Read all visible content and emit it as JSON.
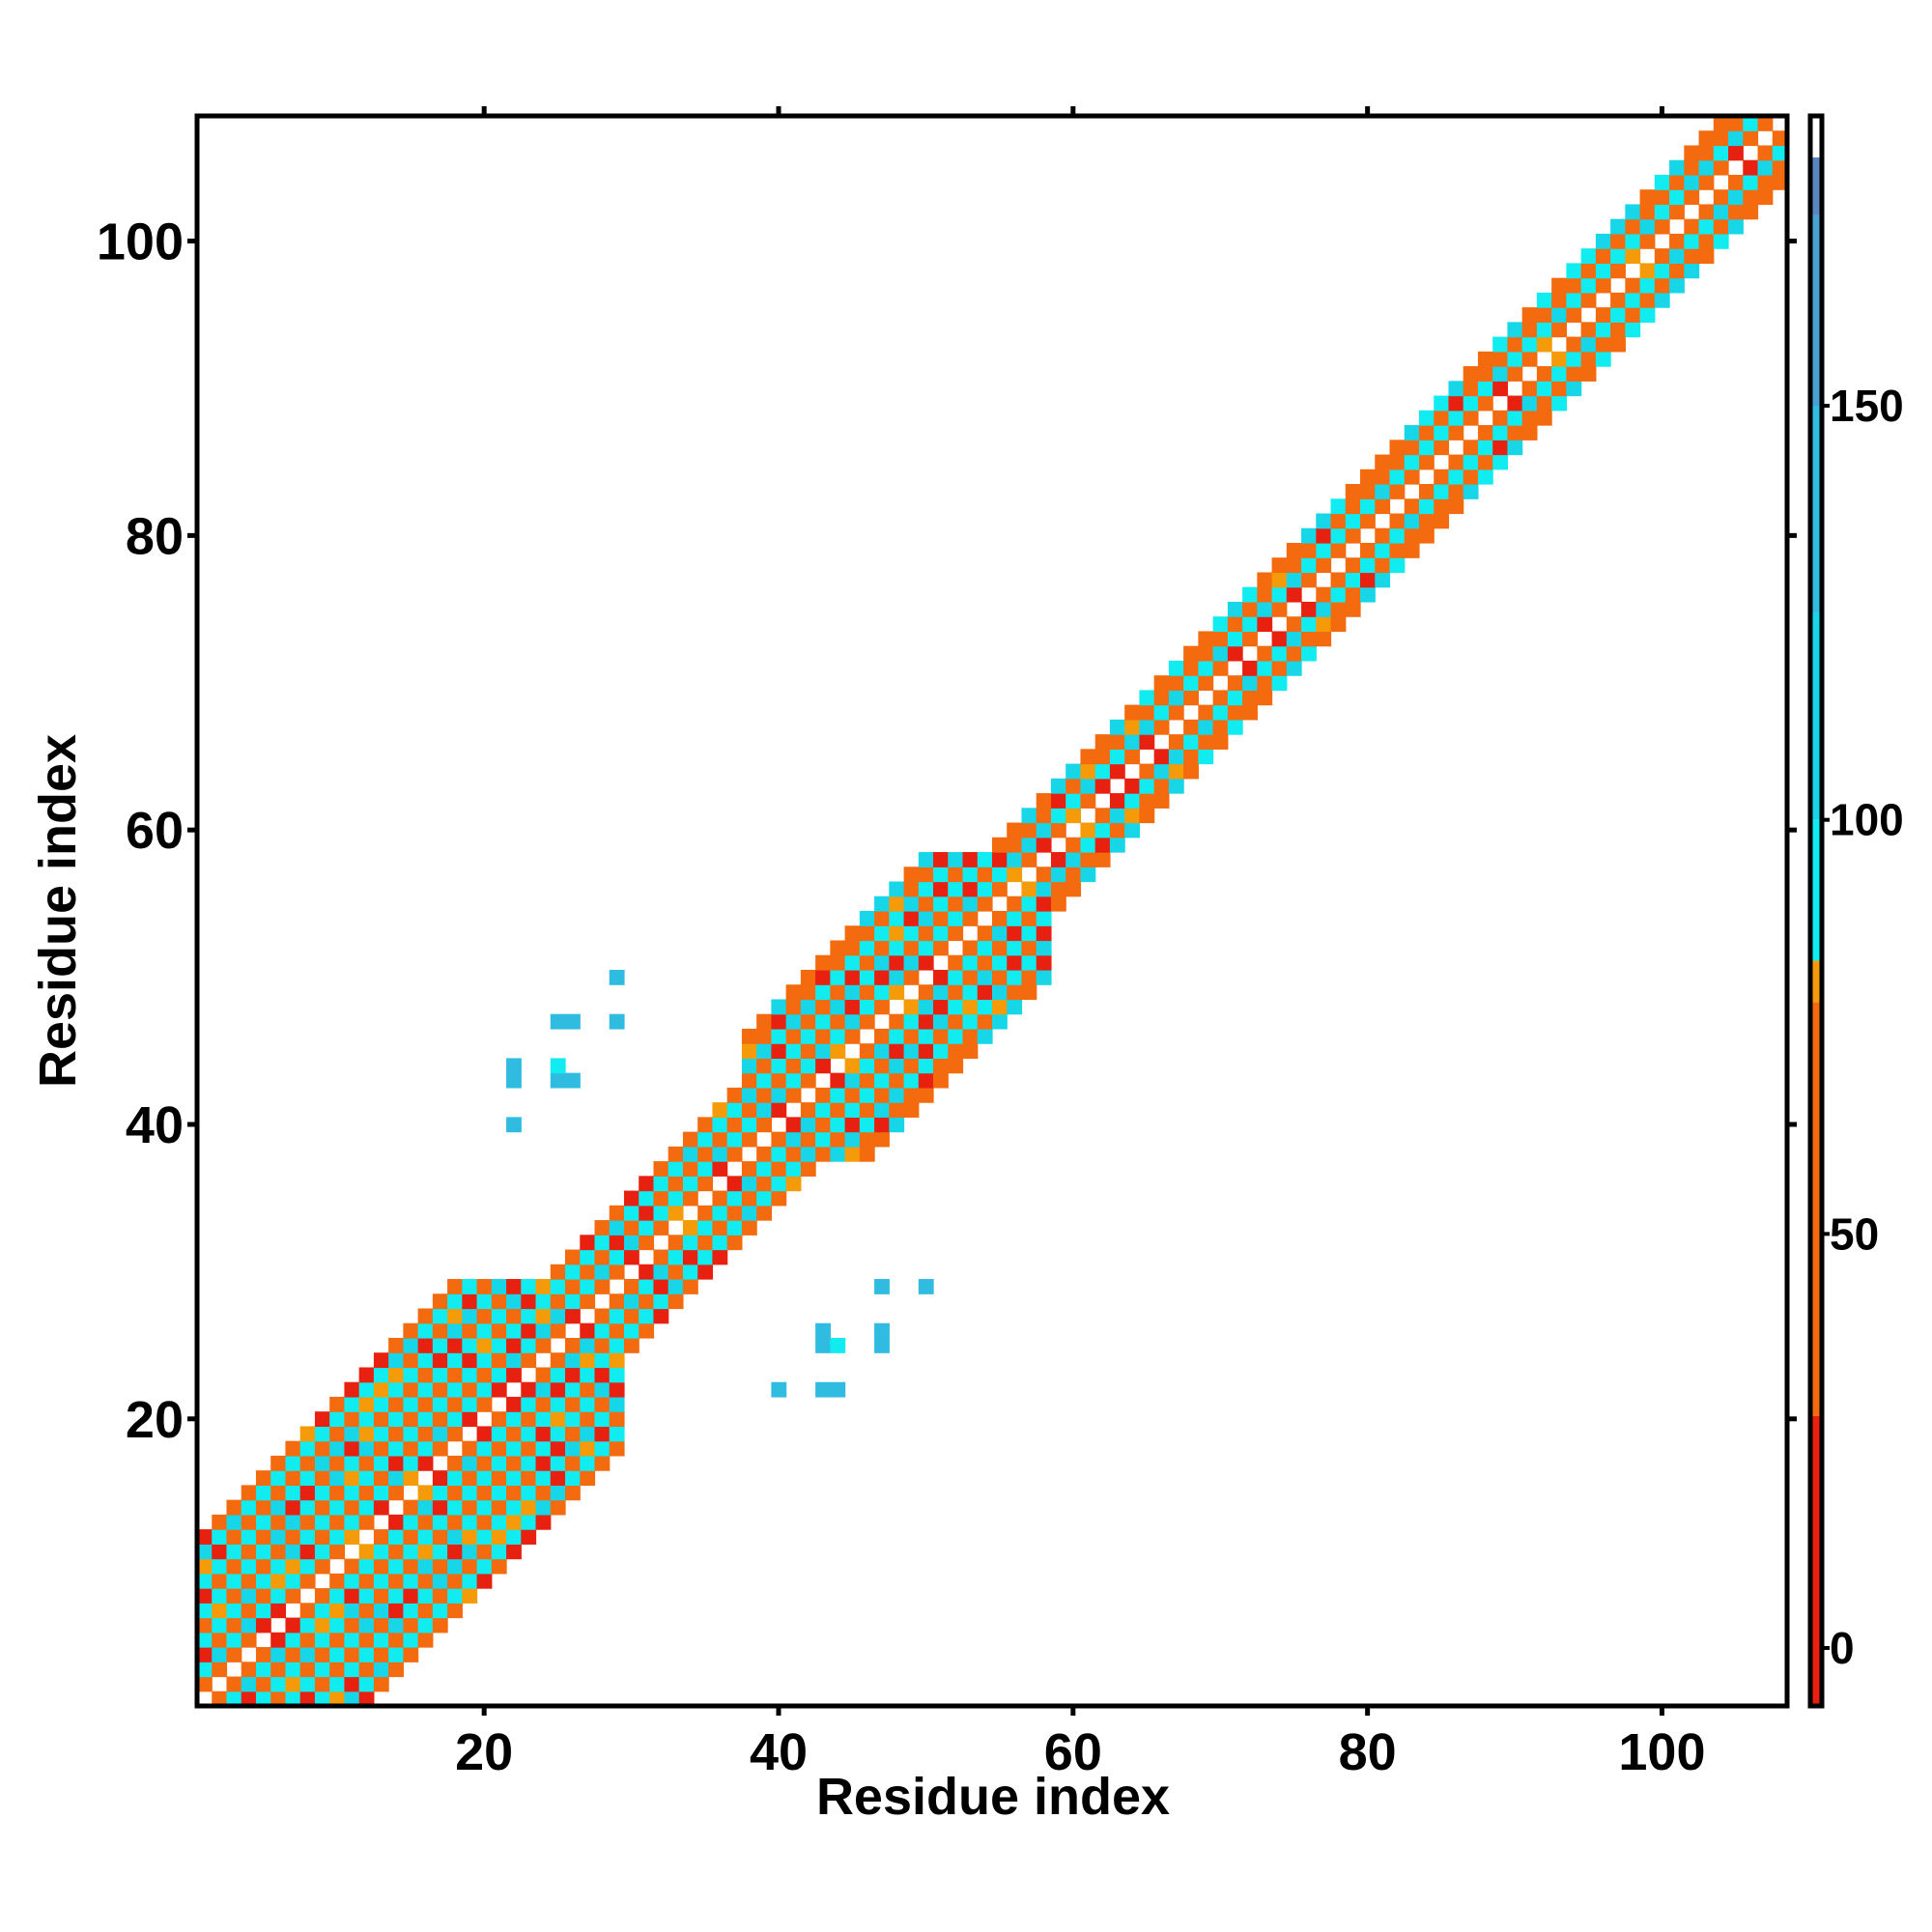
{
  "chart_data": {
    "type": "heatmap",
    "title": "",
    "xlabel": "Residue index",
    "ylabel": "Residue index",
    "xlim": [
      0.5,
      108.5
    ],
    "ylim": [
      0.5,
      108.5
    ],
    "x_ticks": [
      20,
      40,
      60,
      80,
      100
    ],
    "y_ticks": [
      20,
      40,
      60,
      80,
      100
    ],
    "colorbar": {
      "range": [
        -7,
        185
      ],
      "ticks": [
        0,
        50,
        100,
        150
      ],
      "bands": [
        {
          "from": -7,
          "to": 28,
          "color": "#e8200f"
        },
        {
          "from": 28,
          "to": 78,
          "color": "#f46a0f"
        },
        {
          "from": 78,
          "to": 83,
          "color": "#f59b0a"
        },
        {
          "from": 83,
          "to": 100,
          "color": "#10ecef"
        },
        {
          "from": 100,
          "to": 125,
          "color": "#16d6e8"
        },
        {
          "from": 125,
          "to": 150,
          "color": "#30bce0"
        },
        {
          "from": 150,
          "to": 173,
          "color": "#4aa0d2"
        },
        {
          "from": 173,
          "to": 180,
          "color": "#5a86c0"
        },
        {
          "from": 180,
          "to": 185,
          "color": "#ffffff"
        }
      ]
    },
    "colors": {
      "red": "#e8200f",
      "orange": "#f46a0f",
      "amber": "#f59b0a",
      "cyan": "#10ecef",
      "lightblue": "#30bce0",
      "blue": "#4aa0d2"
    },
    "band_profile": [
      {
        "from": 1,
        "to": 29,
        "width": 11
      },
      {
        "from": 30,
        "to": 37,
        "width": 5
      },
      {
        "from": 38,
        "to": 58,
        "width": 8
      },
      {
        "from": 59,
        "to": 108,
        "width": 4
      }
    ],
    "off_diagonal_contacts": [
      {
        "i": 22,
        "j": 40,
        "value": 140
      },
      {
        "i": 22,
        "j": 43,
        "value": 140
      },
      {
        "i": 22,
        "j": 44,
        "value": 140
      },
      {
        "i": 25,
        "j": 43,
        "value": 140
      },
      {
        "i": 25,
        "j": 44,
        "value": 95
      },
      {
        "i": 25,
        "j": 47,
        "value": 140
      },
      {
        "i": 26,
        "j": 43,
        "value": 140
      },
      {
        "i": 26,
        "j": 47,
        "value": 140
      },
      {
        "i": 29,
        "j": 47,
        "value": 140
      },
      {
        "i": 29,
        "j": 50,
        "value": 140
      }
    ]
  }
}
